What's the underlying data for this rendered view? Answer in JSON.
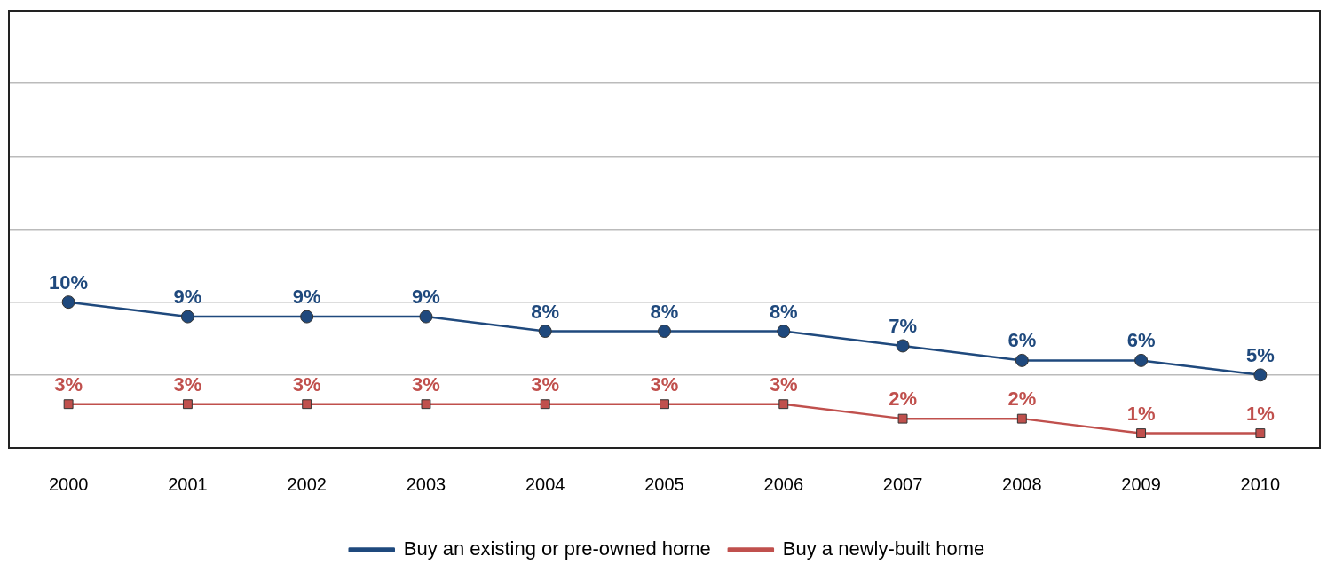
{
  "chart_data": {
    "type": "line",
    "categories": [
      "2000",
      "2001",
      "2002",
      "2003",
      "2004",
      "2005",
      "2006",
      "2007",
      "2008",
      "2009",
      "2010"
    ],
    "series": [
      {
        "name": "Buy an existing or pre-owned home",
        "color": "#1f497d",
        "marker": "circle",
        "values": [
          10,
          9,
          9,
          9,
          8,
          8,
          8,
          7,
          6,
          6,
          5
        ],
        "value_labels": [
          "10%",
          "9%",
          "9%",
          "9%",
          "8%",
          "8%",
          "8%",
          "7%",
          "6%",
          "6%",
          "5%"
        ]
      },
      {
        "name": "Buy a newly-built home",
        "color": "#c0504d",
        "marker": "square",
        "values": [
          3,
          3,
          3,
          3,
          3,
          3,
          3,
          2,
          2,
          1,
          1
        ],
        "value_labels": [
          "3%",
          "3%",
          "3%",
          "3%",
          "3%",
          "3%",
          "3%",
          "2%",
          "2%",
          "1%",
          "1%"
        ]
      }
    ],
    "ylim": [
      0,
      30
    ],
    "yticks": [
      {
        "value": 0,
        "label": null
      },
      {
        "value": 5,
        "label": null
      },
      {
        "value": 10,
        "label": null
      },
      {
        "value": 15,
        "label": null
      },
      {
        "value": 20,
        "label": null
      },
      {
        "value": 25,
        "label": null
      },
      {
        "value": 30,
        "label": null
      }
    ],
    "tick_labels": "x",
    "grid": "y",
    "legend": "bottom",
    "line_style": "solid"
  }
}
